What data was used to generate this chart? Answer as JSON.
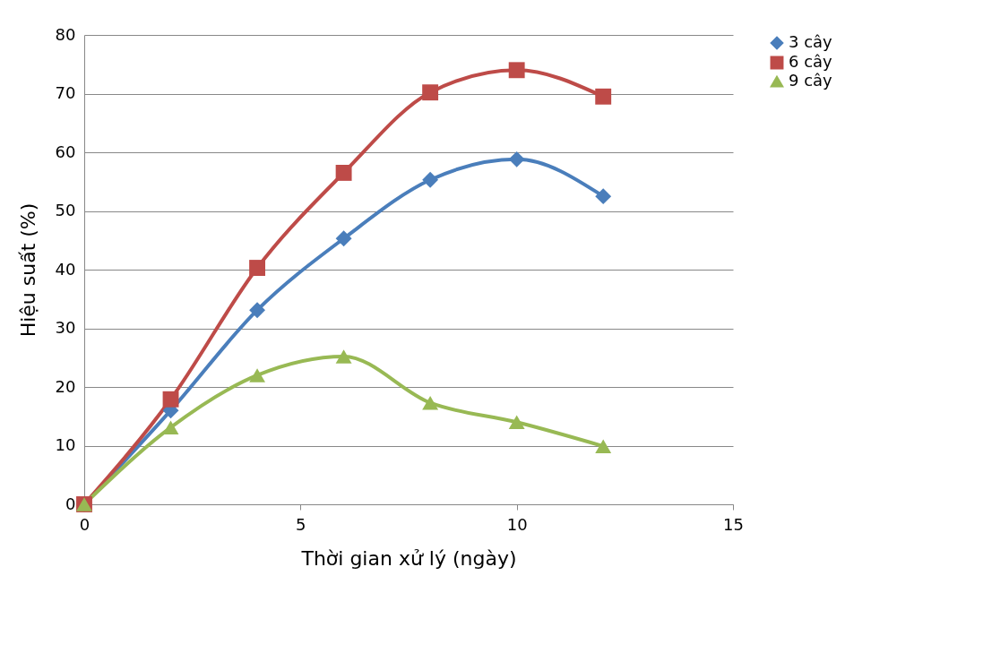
{
  "chart_data": {
    "type": "line",
    "xlabel": "Thời gian xử lý (ngày)",
    "ylabel": "Hiệu suất (%)",
    "x": [
      0,
      2,
      4,
      6,
      8,
      10,
      12
    ],
    "series": [
      {
        "name": "3 cây",
        "color": "#4a7ebb",
        "marker": "diamond",
        "values": [
          0,
          16,
          33.1,
          45.3,
          55.3,
          58.8,
          52.5
        ]
      },
      {
        "name": "6 cây",
        "color": "#be4b48",
        "marker": "square",
        "values": [
          0,
          17.9,
          40.3,
          56.5,
          70.2,
          74,
          69.5
        ]
      },
      {
        "name": "9 cây",
        "color": "#98b954",
        "marker": "triangle",
        "values": [
          0,
          13.1,
          22,
          25.2,
          17.3,
          14,
          9.9
        ]
      }
    ],
    "xlim": [
      0,
      15
    ],
    "xticks": [
      0,
      5,
      10,
      15
    ],
    "ylim": [
      0,
      80
    ],
    "yticks": [
      0,
      10,
      20,
      30,
      40,
      50,
      60,
      70,
      80
    ],
    "grid": "y",
    "legend": "right",
    "line_style": "solid"
  }
}
